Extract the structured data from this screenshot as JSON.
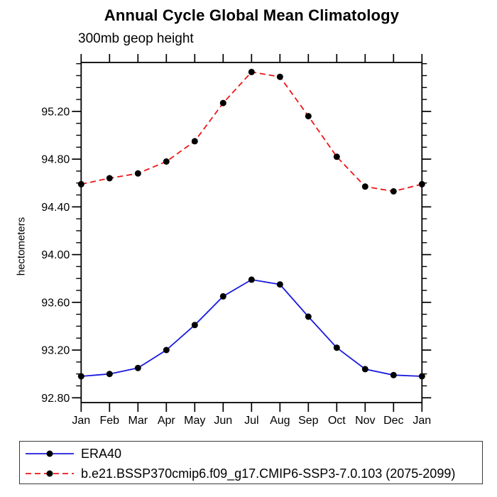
{
  "chart_data": {
    "type": "line",
    "title": "Annual Cycle Global Mean Climatology",
    "left_axis_title": "300mb geop height",
    "ylabel": "hectometers",
    "xlabel": "",
    "categories": [
      "Jan",
      "Feb",
      "Mar",
      "Apr",
      "May",
      "Jun",
      "Jul",
      "Aug",
      "Sep",
      "Oct",
      "Nov",
      "Dec",
      "Jan"
    ],
    "ylim": [
      92.76,
      95.61
    ],
    "yticks_major": [
      95.2,
      94.8,
      94.4,
      94.0,
      93.6,
      93.2,
      92.8
    ],
    "ytick_labels": [
      "95.20",
      "94.80",
      "94.40",
      "94.00",
      "93.60",
      "93.20",
      "92.80"
    ],
    "ytick_minor_step": 0.1,
    "grid": false,
    "legend_position": "bottom-left-box",
    "axis_color": "#000000",
    "series": [
      {
        "name": "ERA40",
        "color": "#1a1ae0",
        "line_style": "solid",
        "marker": "filled-circle",
        "marker_color": "#000000",
        "values": [
          92.98,
          93.0,
          93.05,
          93.2,
          93.41,
          93.65,
          93.79,
          93.75,
          93.48,
          93.22,
          93.04,
          92.99,
          92.98
        ]
      },
      {
        "name": "b.e21.BSSP370cmip6.f09_g17.CMIP6-SSP3-7.0.103 (2075-2099)",
        "color": "#ee1515",
        "line_style": "dashed",
        "marker": "filled-circle",
        "marker_color": "#000000",
        "values": [
          94.59,
          94.64,
          94.68,
          94.78,
          94.95,
          95.27,
          95.53,
          95.49,
          95.16,
          94.82,
          94.57,
          94.53,
          94.59
        ]
      }
    ]
  }
}
